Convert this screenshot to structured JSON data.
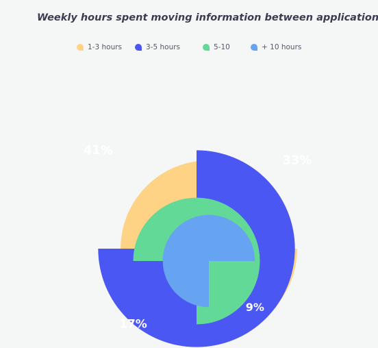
{
  "chart_data": {
    "type": "pie",
    "title": "Weekly hours spent moving information between applications",
    "legend_position": "top",
    "categories": [
      "1-3 hours",
      "3-5 hours",
      "5-10",
      "+ 10 hours"
    ],
    "values": [
      33,
      41,
      17,
      9
    ],
    "value_labels": [
      "33%",
      "41%",
      "17%",
      "9%"
    ],
    "colors": [
      "#fed386",
      "#4b57f2",
      "#62d996",
      "#66a3f0"
    ]
  }
}
